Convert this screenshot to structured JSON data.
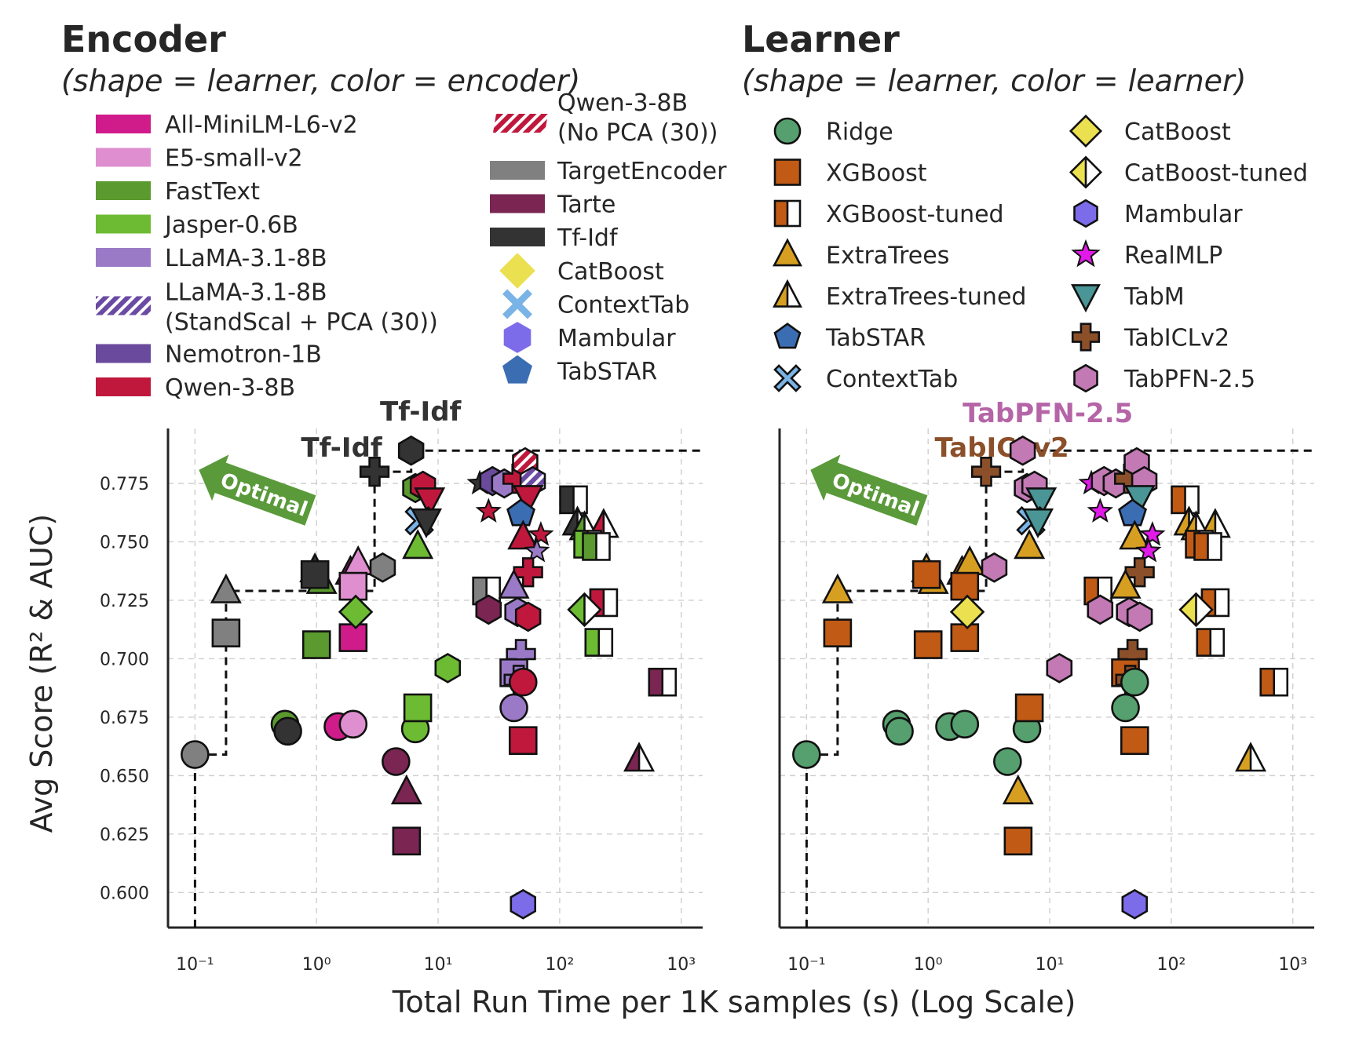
{
  "chart_data": [
    {
      "type": "scatter",
      "panel": "encoder",
      "title": "Encoder",
      "subtitle": "(shape = learner, color = encoder)",
      "xlabel": "Total Run Time per 1K samples (s) (Log Scale)",
      "ylabel": "Avg Score (R² & AUC)",
      "xscale": "log",
      "xlim": [
        0.06,
        1500
      ],
      "ylim": [
        0.585,
        0.7985
      ],
      "xticks": [
        "10⁻¹",
        "10⁰",
        "10¹",
        "10²",
        "10³"
      ],
      "yticks": [
        "0.600",
        "0.625",
        "0.650",
        "0.675",
        "0.700",
        "0.725",
        "0.750",
        "0.775"
      ],
      "grid": true,
      "pareto_front": [
        [
          0.1,
          0.659
        ],
        [
          0.18,
          0.729
        ],
        [
          3.0,
          0.78
        ],
        [
          6.0,
          0.789
        ]
      ],
      "optimal_label": "Optimal",
      "annotations": [
        "Tf-Idf",
        "Tf-Idf"
      ],
      "legend": {
        "colors": [
          {
            "label": "All-MiniLM-L6-v2",
            "color": "#d01c8b"
          },
          {
            "label": "E5-small-v2",
            "color": "#df8fd0"
          },
          {
            "label": "FastText",
            "color": "#5a9a2e"
          },
          {
            "label": "Jasper-0.6B",
            "color": "#6cbb33"
          },
          {
            "label": "LLaMA-3.1-8B",
            "color": "#9a7ac7"
          },
          {
            "label": "LLaMA-3.1-8B",
            "label2": "(StandScal + PCA (30))",
            "color": "#6a4aa3",
            "hatched": true
          },
          {
            "label": "Nemotron-1B",
            "color": "#6a4a9c"
          },
          {
            "label": "Qwen-3-8B",
            "color": "#c0183c"
          },
          {
            "label": "Qwen-3-8B",
            "label2": "(No PCA (30))",
            "color": "#c0183c",
            "hatched": true
          },
          {
            "label": "TargetEncoder",
            "color": "#808080"
          },
          {
            "label": "Tarte",
            "color": "#7a2552"
          },
          {
            "label": "Tf-Idf",
            "color": "#333333"
          }
        ],
        "shapes": [
          {
            "label": "CatBoost",
            "color": "#ebe050",
            "marker": "diamond"
          },
          {
            "label": "ContextTab",
            "color": "#7ab4e6",
            "marker": "x"
          },
          {
            "label": "Mambular",
            "color": "#7c6cea",
            "marker": "hexagon"
          },
          {
            "label": "TabSTAR",
            "color": "#3b6db3",
            "marker": "pentagon"
          }
        ]
      },
      "points": [
        {
          "x": 0.1,
          "y": 0.659,
          "encoder": "TargetEncoder",
          "learner": "Ridge"
        },
        {
          "x": 0.18,
          "y": 0.729,
          "encoder": "TargetEncoder",
          "learner": "ExtraTrees"
        },
        {
          "x": 0.18,
          "y": 0.711,
          "encoder": "TargetEncoder",
          "learner": "XGBoost"
        },
        {
          "x": 0.55,
          "y": 0.672,
          "encoder": "FastText",
          "learner": "Ridge"
        },
        {
          "x": 0.58,
          "y": 0.669,
          "encoder": "Tf-Idf",
          "learner": "Ridge"
        },
        {
          "x": 1.5,
          "y": 0.671,
          "encoder": "All-MiniLM-L6-v2",
          "learner": "Ridge"
        },
        {
          "x": 2.0,
          "y": 0.672,
          "encoder": "E5-small-v2",
          "learner": "Ridge"
        },
        {
          "x": 1.0,
          "y": 0.706,
          "encoder": "FastText",
          "learner": "XGBoost"
        },
        {
          "x": 2.0,
          "y": 0.709,
          "encoder": "All-MiniLM-L6-v2",
          "learner": "XGBoost"
        },
        {
          "x": 1.1,
          "y": 0.733,
          "encoder": "FastText",
          "learner": "ExtraTrees"
        },
        {
          "x": 0.97,
          "y": 0.738,
          "encoder": "Tf-Idf",
          "learner": "ExtraTrees"
        },
        {
          "x": 0.97,
          "y": 0.736,
          "encoder": "Tf-Idf",
          "learner": "XGBoost"
        },
        {
          "x": 1.9,
          "y": 0.737,
          "encoder": "All-MiniLM-L6-v2",
          "learner": "ExtraTrees"
        },
        {
          "x": 2.2,
          "y": 0.741,
          "encoder": "E5-small-v2",
          "learner": "ExtraTrees"
        },
        {
          "x": 2.0,
          "y": 0.731,
          "encoder": "E5-small-v2",
          "learner": "XGBoost"
        },
        {
          "x": 2.1,
          "y": 0.72,
          "encoder": "Jasper-0.6B",
          "learner": "CatBoost"
        },
        {
          "x": 3.0,
          "y": 0.78,
          "encoder": "Tf-Idf",
          "learner": "TabICLv2"
        },
        {
          "x": 3.5,
          "y": 0.739,
          "encoder": "TargetEncoder",
          "learner": "TabPFN-2.5"
        },
        {
          "x": 4.5,
          "y": 0.656,
          "encoder": "Tarte",
          "learner": "Ridge"
        },
        {
          "x": 5.5,
          "y": 0.643,
          "encoder": "Tarte",
          "learner": "ExtraTrees"
        },
        {
          "x": 5.5,
          "y": 0.622,
          "encoder": "Tarte",
          "learner": "XGBoost"
        },
        {
          "x": 6.0,
          "y": 0.789,
          "encoder": "Tf-Idf",
          "learner": "TabPFN-2.5"
        },
        {
          "x": 6.8,
          "y": 0.748,
          "encoder": "Jasper-0.6B",
          "learner": "ExtraTrees"
        },
        {
          "x": 6.5,
          "y": 0.67,
          "encoder": "Jasper-0.6B",
          "learner": "Ridge"
        },
        {
          "x": 6.8,
          "y": 0.679,
          "encoder": "Jasper-0.6B",
          "learner": "XGBoost"
        },
        {
          "x": 6.5,
          "y": 0.773,
          "encoder": "FastText",
          "learner": "TabPFN-2.5"
        },
        {
          "x": 7.5,
          "y": 0.774,
          "encoder": "Qwen-3-8B",
          "learner": "TabPFN-2.5"
        },
        {
          "x": 8.5,
          "y": 0.768,
          "encoder": "Qwen-3-8B",
          "learner": "TabM"
        },
        {
          "x": 7.0,
          "y": 0.759,
          "encoder": "ContextTab",
          "learner": "ContextTab"
        },
        {
          "x": 8.0,
          "y": 0.759,
          "encoder": "Tf-Idf",
          "learner": "TabM"
        },
        {
          "x": 12.0,
          "y": 0.696,
          "encoder": "Jasper-0.6B",
          "learner": "TabPFN-2.5"
        },
        {
          "x": 22.0,
          "y": 0.775,
          "encoder": "Tf-Idf",
          "learner": "RealMLP"
        },
        {
          "x": 26.0,
          "y": 0.763,
          "encoder": "Qwen-3-8B",
          "learner": "RealMLP"
        },
        {
          "x": 25.0,
          "y": 0.729,
          "encoder": "TargetEncoder",
          "learner": "XGBoost-tuned"
        },
        {
          "x": 26.0,
          "y": 0.721,
          "encoder": "Tarte",
          "learner": "TabPFN-2.5"
        },
        {
          "x": 28.0,
          "y": 0.776,
          "encoder": "Nemotron-1B",
          "learner": "TabPFN-2.5"
        },
        {
          "x": 35.0,
          "y": 0.775,
          "encoder": "LLaMA-3.1-8B",
          "learner": "TabPFN-2.5"
        },
        {
          "x": 45.0,
          "y": 0.777,
          "encoder": "Qwen-3-8B",
          "learner": "TabICLv2"
        },
        {
          "x": 52.0,
          "y": 0.784,
          "encoder": "Qwen-3-8B (No PCA (30))",
          "learner": "TabPFN-2.5"
        },
        {
          "x": 60.0,
          "y": 0.776,
          "encoder": "LLaMA-3.1-8B (StandScal + PCA (30))",
          "learner": "TabPFN-2.5"
        },
        {
          "x": 55.0,
          "y": 0.769,
          "encoder": "Qwen-3-8B",
          "learner": "TabM"
        },
        {
          "x": 48.0,
          "y": 0.762,
          "encoder": "TabSTAR",
          "learner": "TabSTAR"
        },
        {
          "x": 50.0,
          "y": 0.752,
          "encoder": "Qwen-3-8B",
          "learner": "ExtraTrees"
        },
        {
          "x": 70.0,
          "y": 0.753,
          "encoder": "Qwen-3-8B",
          "learner": "RealMLP"
        },
        {
          "x": 65.0,
          "y": 0.746,
          "encoder": "LLaMA-3.1-8B",
          "learner": "RealMLP"
        },
        {
          "x": 55.0,
          "y": 0.737,
          "encoder": "Qwen-3-8B",
          "learner": "TabICLv2"
        },
        {
          "x": 42.0,
          "y": 0.731,
          "encoder": "LLaMA-3.1-8B",
          "learner": "ExtraTrees"
        },
        {
          "x": 45.0,
          "y": 0.72,
          "encoder": "LLaMA-3.1-8B",
          "learner": "TabPFN-2.5"
        },
        {
          "x": 55.0,
          "y": 0.718,
          "encoder": "Qwen-3-8B",
          "learner": "TabPFN-2.5"
        },
        {
          "x": 48.0,
          "y": 0.702,
          "encoder": "LLaMA-3.1-8B",
          "learner": "TabICLv2"
        },
        {
          "x": 42.0,
          "y": 0.694,
          "encoder": "LLaMA-3.1-8B",
          "learner": "XGBoost"
        },
        {
          "x": 46.0,
          "y": 0.691,
          "encoder": "LLaMA-3.1-8B",
          "learner": "TabICLv2"
        },
        {
          "x": 42.0,
          "y": 0.679,
          "encoder": "LLaMA-3.1-8B",
          "learner": "Ridge"
        },
        {
          "x": 50.0,
          "y": 0.69,
          "encoder": "Qwen-3-8B",
          "learner": "Ridge"
        },
        {
          "x": 50.0,
          "y": 0.665,
          "encoder": "Qwen-3-8B",
          "learner": "XGBoost"
        },
        {
          "x": 50.0,
          "y": 0.595,
          "encoder": "Mambular",
          "learner": "Mambular"
        },
        {
          "x": 130.0,
          "y": 0.768,
          "encoder": "Tf-Idf",
          "learner": "XGBoost-tuned"
        },
        {
          "x": 140.0,
          "y": 0.758,
          "encoder": "Tf-Idf",
          "learner": "ExtraTrees-tuned"
        },
        {
          "x": 160.0,
          "y": 0.756,
          "encoder": "FastText",
          "learner": "ExtraTrees-tuned"
        },
        {
          "x": 230.0,
          "y": 0.757,
          "encoder": "Qwen-3-8B",
          "learner": "ExtraTrees-tuned"
        },
        {
          "x": 170.0,
          "y": 0.749,
          "encoder": "Jasper-0.6B",
          "learner": "XGBoost-tuned"
        },
        {
          "x": 200.0,
          "y": 0.748,
          "encoder": "FastText",
          "learner": "XGBoost-tuned"
        },
        {
          "x": 230.0,
          "y": 0.724,
          "encoder": "Qwen-3-8B",
          "learner": "XGBoost-tuned"
        },
        {
          "x": 160.0,
          "y": 0.721,
          "encoder": "Jasper-0.6B",
          "learner": "CatBoost-tuned"
        },
        {
          "x": 210.0,
          "y": 0.707,
          "encoder": "Jasper-0.6B",
          "learner": "XGBoost-tuned"
        },
        {
          "x": 700.0,
          "y": 0.69,
          "encoder": "Tarte",
          "learner": "XGBoost-tuned"
        },
        {
          "x": 450.0,
          "y": 0.657,
          "encoder": "Tarte",
          "learner": "ExtraTrees-tuned"
        }
      ]
    },
    {
      "type": "scatter",
      "panel": "learner",
      "title": "Learner",
      "subtitle": "(shape = learner, color = learner)",
      "xlabel": "Total Run Time per 1K samples (s) (Log Scale)",
      "xscale": "log",
      "xlim": [
        0.06,
        1500
      ],
      "ylim": [
        0.585,
        0.7985
      ],
      "xticks": [
        "10⁻¹",
        "10⁰",
        "10¹",
        "10²",
        "10³"
      ],
      "grid": true,
      "pareto_front": [
        [
          0.1,
          0.659
        ],
        [
          0.18,
          0.729
        ],
        [
          3.0,
          0.78
        ],
        [
          6.0,
          0.789
        ]
      ],
      "optimal_label": "Optimal",
      "annotations": [
        {
          "text": "TabPFN-2.5",
          "color": "#b565a7"
        },
        {
          "text": "TabICLv2",
          "color": "#8b4f2a"
        }
      ],
      "legend": [
        {
          "label": "Ridge",
          "color": "#55a06e",
          "marker": "circle"
        },
        {
          "label": "XGBoost",
          "color": "#c15a15",
          "marker": "square"
        },
        {
          "label": "XGBoost-tuned",
          "color": "#c15a15",
          "marker": "square-half"
        },
        {
          "label": "ExtraTrees",
          "color": "#d79f22",
          "marker": "triangle"
        },
        {
          "label": "ExtraTrees-tuned",
          "color": "#d79f22",
          "marker": "triangle-half"
        },
        {
          "label": "TabSTAR",
          "color": "#3b6db3",
          "marker": "pentagon"
        },
        {
          "label": "ContextTab",
          "color": "#7ab4e6",
          "marker": "x"
        },
        {
          "label": "CatBoost",
          "color": "#ebe050",
          "marker": "diamond"
        },
        {
          "label": "CatBoost-tuned",
          "color": "#ebe050",
          "marker": "diamond-half"
        },
        {
          "label": "Mambular",
          "color": "#7c6cea",
          "marker": "hexagon"
        },
        {
          "label": "RealMLP",
          "color": "#e21ae8",
          "marker": "star"
        },
        {
          "label": "TabM",
          "color": "#4a9595",
          "marker": "triangle-down"
        },
        {
          "label": "TabICLv2",
          "color": "#8b4f2a",
          "marker": "plus"
        },
        {
          "label": "TabPFN-2.5",
          "color": "#c279b4",
          "marker": "hexagon"
        }
      ]
    }
  ]
}
